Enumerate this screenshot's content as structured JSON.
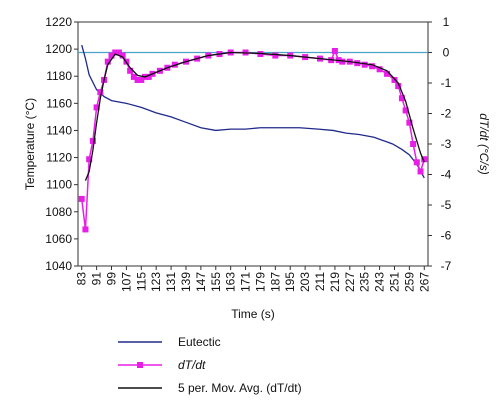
{
  "chart_data": {
    "type": "line",
    "xlabel": "Time (s)",
    "ylabel": "Temperature (°C)",
    "y2label": "dT/dt (°C/s)",
    "xlim": [
      81,
      269
    ],
    "xticks": [
      83,
      91,
      99,
      107,
      115,
      123,
      131,
      139,
      147,
      155,
      163,
      171,
      179,
      187,
      195,
      203,
      211,
      219,
      227,
      235,
      243,
      251,
      259,
      267
    ],
    "ylim": [
      1040,
      1220
    ],
    "yticks": [
      1040,
      1060,
      1080,
      1100,
      1120,
      1140,
      1160,
      1180,
      1200,
      1220
    ],
    "y2lim": [
      -7,
      1
    ],
    "y2ticks": [
      -7,
      -6,
      -5,
      -4,
      -3,
      -2,
      -1,
      0,
      1
    ],
    "series": [
      {
        "name": "Eutectic",
        "color": "#1f2a8a",
        "marker": false,
        "x": [
          83,
          85,
          87,
          91,
          95,
          99,
          107,
          115,
          123,
          131,
          139,
          147,
          155,
          163,
          171,
          179,
          190,
          200,
          210,
          218,
          225,
          232,
          240,
          246,
          250,
          255,
          259,
          263,
          267
        ],
        "values": [
          1203,
          1193,
          1181,
          1170,
          1165,
          1162,
          1160,
          1157,
          1153,
          1150,
          1146,
          1142,
          1140,
          1141,
          1141,
          1142,
          1142,
          1142,
          1141,
          1140,
          1138,
          1137,
          1135,
          1132,
          1130,
          1126,
          1122,
          1115,
          1105
        ]
      },
      {
        "name": "dT/dt",
        "color": "#e81ee8",
        "marker": true,
        "axis": "y2",
        "x": [
          83,
          85,
          87,
          89,
          91,
          93,
          95,
          97,
          99,
          101,
          103,
          105,
          107,
          109,
          111,
          113,
          115,
          117,
          119,
          121,
          125,
          129,
          133,
          139,
          145,
          151,
          157,
          163,
          171,
          179,
          187,
          195,
          203,
          211,
          217,
          219,
          221,
          223,
          227,
          231,
          235,
          239,
          243,
          247,
          251,
          253,
          255,
          257,
          259,
          261,
          263,
          265,
          267
        ],
        "values": [
          -4.8,
          -5.8,
          -3.5,
          -2.9,
          -1.8,
          -1.3,
          -0.9,
          -0.3,
          -0.1,
          0.0,
          0.0,
          -0.1,
          -0.3,
          -0.6,
          -0.8,
          -0.9,
          -0.9,
          -0.8,
          -0.8,
          -0.7,
          -0.6,
          -0.5,
          -0.4,
          -0.3,
          -0.2,
          -0.1,
          -0.05,
          0.0,
          0.0,
          -0.05,
          -0.1,
          -0.1,
          -0.15,
          -0.2,
          -0.25,
          0.05,
          -0.25,
          -0.3,
          -0.3,
          -0.35,
          -0.4,
          -0.45,
          -0.55,
          -0.7,
          -0.9,
          -1.1,
          -1.5,
          -1.9,
          -2.3,
          -3.0,
          -3.6,
          -3.9,
          -3.5
        ]
      },
      {
        "name": "5 per. Mov. Avg. (dT/dt)",
        "color": "#111111",
        "marker": false,
        "axis": "y2",
        "x": [
          85,
          87,
          89,
          91,
          93,
          95,
          97,
          101,
          105,
          109,
          113,
          117,
          121,
          129,
          139,
          151,
          163,
          179,
          195,
          211,
          227,
          239,
          247,
          253,
          257,
          261,
          265,
          267
        ],
        "values": [
          -4.2,
          -3.9,
          -3.2,
          -2.3,
          -1.5,
          -0.9,
          -0.4,
          -0.05,
          -0.15,
          -0.5,
          -0.75,
          -0.8,
          -0.7,
          -0.5,
          -0.3,
          -0.1,
          0.0,
          -0.03,
          -0.1,
          -0.2,
          -0.3,
          -0.4,
          -0.6,
          -1.0,
          -1.6,
          -2.5,
          -3.3,
          -3.6
        ]
      }
    ]
  }
}
